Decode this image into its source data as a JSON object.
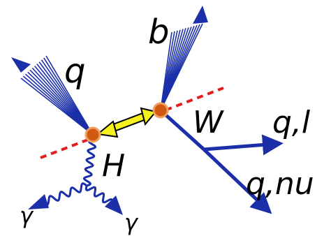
{
  "labels": {
    "b": "b",
    "q": "q",
    "W": "W",
    "ql": "q,l",
    "H": "H",
    "qnu": "q,nu",
    "gamma1": "γ",
    "gamma2": "γ"
  }
}
